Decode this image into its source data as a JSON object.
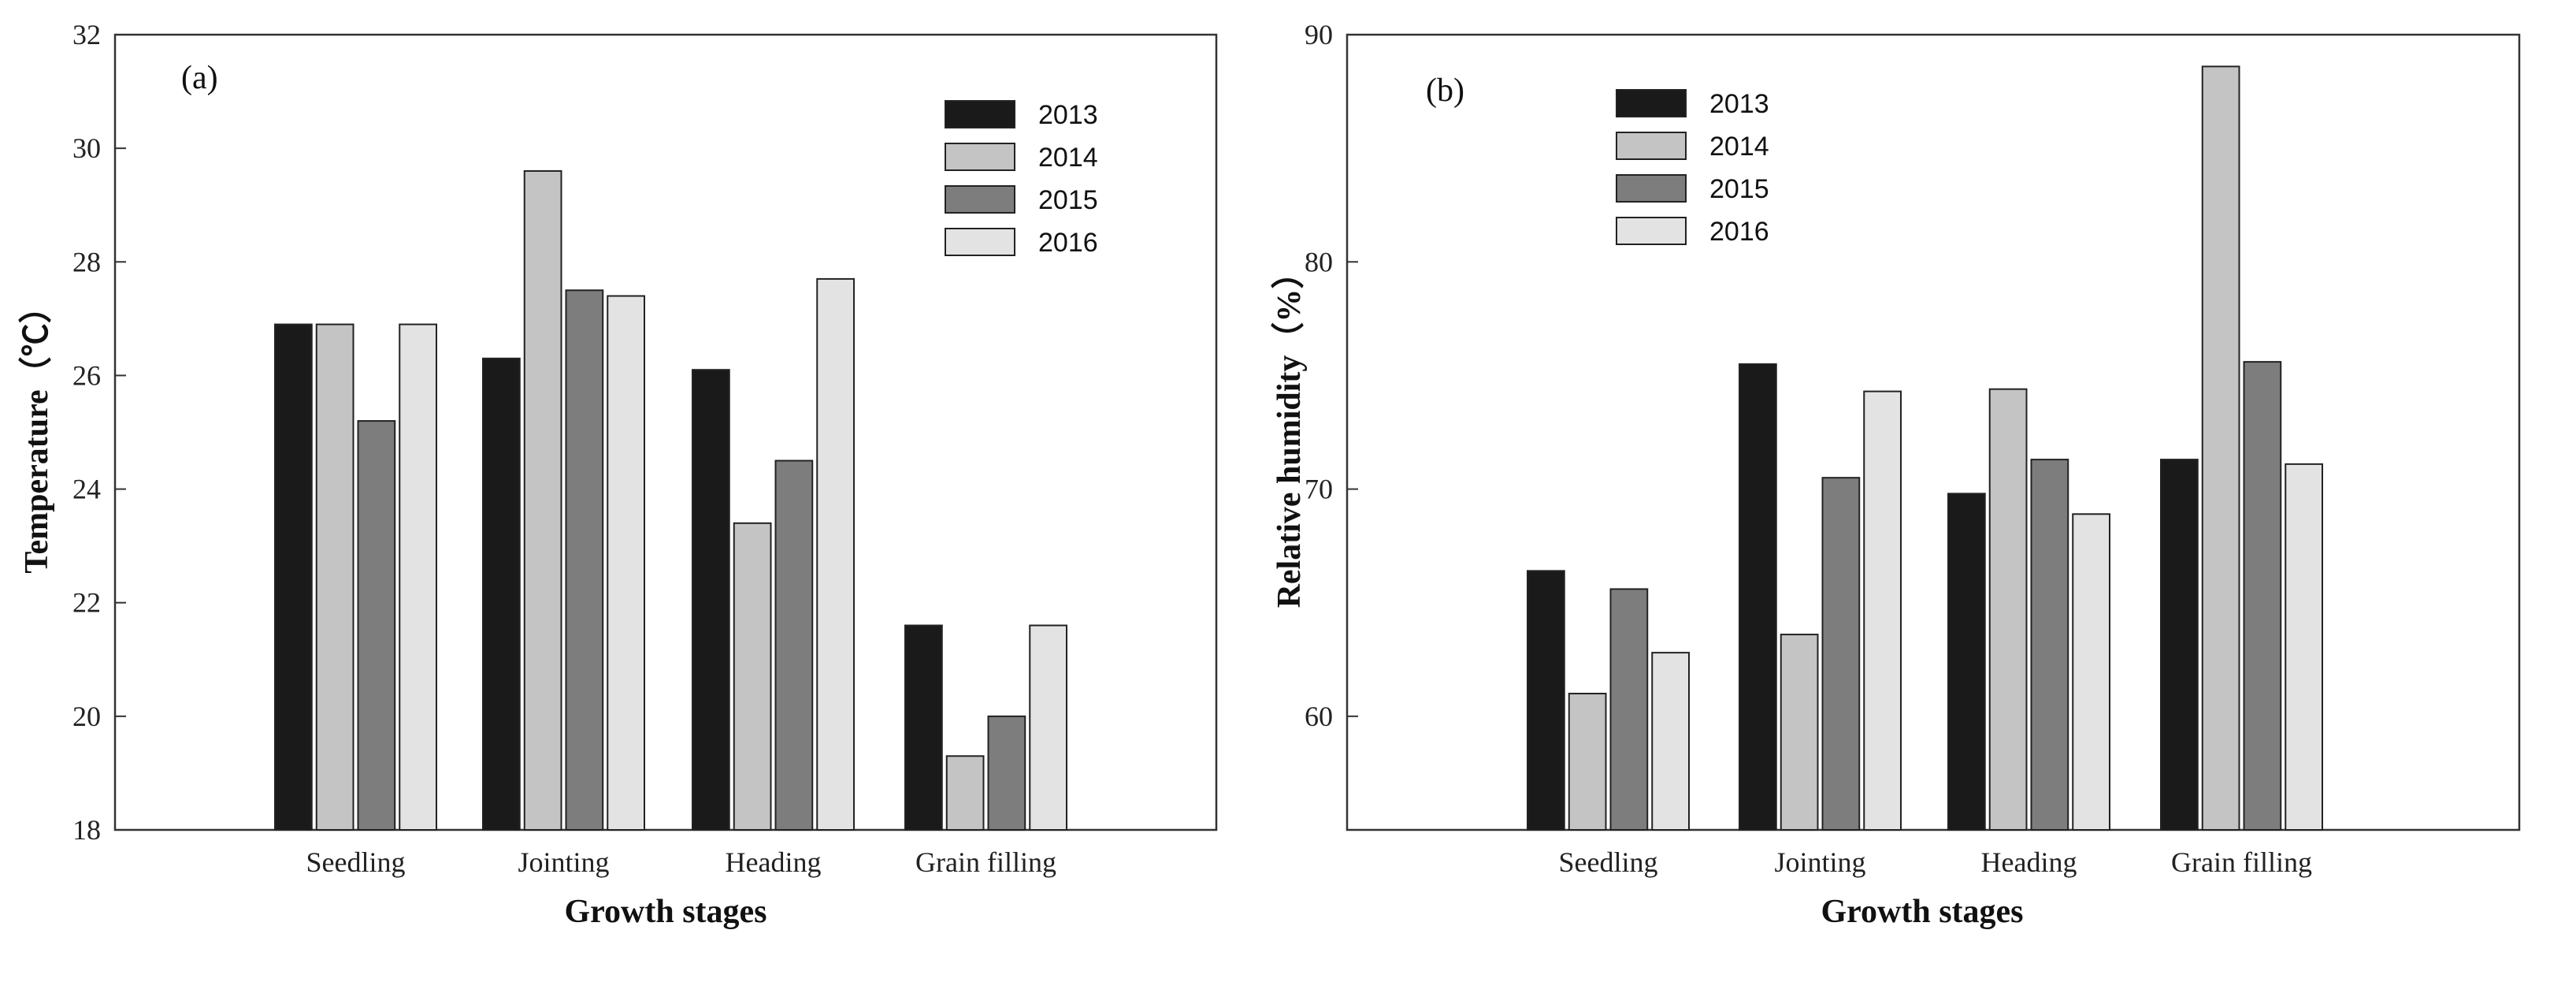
{
  "colors": {
    "2013": "#1a1a1a",
    "2014": "#c4c4c4",
    "2015": "#7d7d7d",
    "2016": "#e3e3e3",
    "frame": "#333333",
    "bar_edge": "#222222"
  },
  "chart_data": [
    {
      "type": "bar",
      "panel_label": "(a)",
      "title": "",
      "xlabel": "Growth stages",
      "ylabel": "Temperature（℃）",
      "ylim": [
        18,
        32
      ],
      "yticks": [
        18,
        20,
        22,
        24,
        26,
        28,
        30,
        32
      ],
      "categories": [
        "Seedling",
        "Jointing",
        "Heading",
        "Grain filling"
      ],
      "legend_position": "top-right",
      "series": [
        {
          "name": "2013",
          "values": [
            26.9,
            26.3,
            26.1,
            21.6
          ]
        },
        {
          "name": "2014",
          "values": [
            26.9,
            29.6,
            23.4,
            19.3
          ]
        },
        {
          "name": "2015",
          "values": [
            25.2,
            27.5,
            24.5,
            20.0
          ]
        },
        {
          "name": "2016",
          "values": [
            26.9,
            27.4,
            27.7,
            21.6
          ]
        }
      ]
    },
    {
      "type": "bar",
      "panel_label": "(b)",
      "title": "",
      "xlabel": "Growth stages",
      "ylabel": "Relative humidity（%）",
      "ylim": [
        55,
        90
      ],
      "yticks": [
        60,
        70,
        80,
        90
      ],
      "categories": [
        "Seedling",
        "Jointing",
        "Heading",
        "Grain filling"
      ],
      "legend_position": "top-left",
      "series": [
        {
          "name": "2013",
          "values": [
            66.4,
            75.5,
            69.8,
            71.3
          ]
        },
        {
          "name": "2014",
          "values": [
            61.0,
            63.6,
            74.4,
            88.6
          ]
        },
        {
          "name": "2015",
          "values": [
            65.6,
            70.5,
            71.3,
            75.6
          ]
        },
        {
          "name": "2016",
          "values": [
            62.8,
            74.3,
            68.9,
            71.1
          ]
        }
      ]
    }
  ]
}
